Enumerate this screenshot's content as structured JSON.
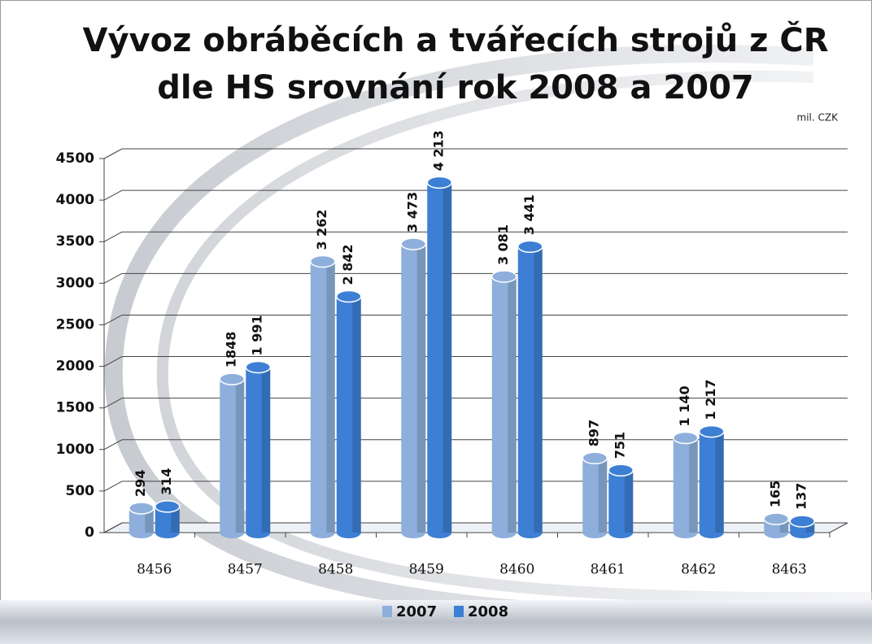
{
  "chart_data": {
    "type": "bar",
    "title": [
      "Vývoz obráběcích a tvářecích strojů z ČR",
      "dle HS  srovnání rok 2008 a 2007"
    ],
    "unit": "mil. CZK",
    "categories": [
      "8456",
      "8457",
      "8458",
      "8459",
      "8460",
      "8461",
      "8462",
      "8463"
    ],
    "series": [
      {
        "name": "2007",
        "color": "#8eafdb",
        "values": [
          294,
          1848,
          3262,
          3473,
          3081,
          897,
          1140,
          165
        ],
        "value_labels": [
          "294",
          "1848",
          "3 262",
          "3 473",
          "3 081",
          "897",
          "1 140",
          "165"
        ]
      },
      {
        "name": "2008",
        "color": "#3d7fd4",
        "values": [
          314,
          1991,
          2842,
          4213,
          3441,
          751,
          1217,
          137
        ],
        "value_labels": [
          "314",
          "1 991",
          "2 842",
          "4 213",
          "3 441",
          "751",
          "1 217",
          "137"
        ]
      }
    ],
    "ylim": [
      0,
      4500
    ],
    "yticks": [
      0,
      500,
      1000,
      1500,
      2000,
      2500,
      3000,
      3500,
      4000,
      4500
    ],
    "grid": true,
    "legend": "bottom"
  }
}
